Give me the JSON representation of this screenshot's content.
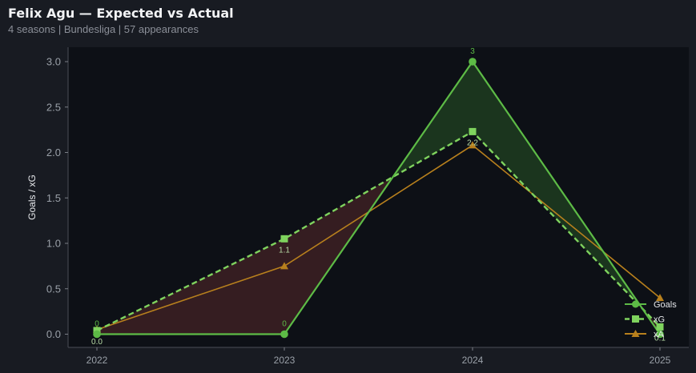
{
  "header": {
    "title": "Felix Agu — Expected vs Actual",
    "subtitle": "4 seasons | Bundesliga | 57 appearances"
  },
  "chart_data": {
    "type": "line",
    "title": "Felix Agu — Expected vs Actual",
    "subtitle": "4 seasons | Bundesliga | 57 appearances",
    "xlabel": "",
    "ylabel": "Goals / xG",
    "categories": [
      "2022",
      "2023",
      "2024",
      "2025"
    ],
    "ylim": [
      -0.08,
      3.17
    ],
    "yticks": [
      "0.0",
      "0.5",
      "1.0",
      "1.5",
      "2.0",
      "2.5",
      "3.0"
    ],
    "series": [
      {
        "name": "Goals",
        "values": [
          0,
          0,
          3,
          0
        ],
        "color": "#5dbb46",
        "style": "solid",
        "marker": "circle",
        "labels": [
          "0",
          "0",
          "3",
          ""
        ]
      },
      {
        "name": "xG",
        "values": [
          0.04,
          1.05,
          2.23,
          0.08
        ],
        "color": "#7fd35e",
        "style": "dashed",
        "marker": "square",
        "labels": [
          "0.0",
          "1.1",
          "2.2",
          "0.1"
        ]
      },
      {
        "name": "xA",
        "values": [
          0.05,
          0.75,
          2.08,
          0.4
        ],
        "color": "#b8801d",
        "style": "solid",
        "marker": "triangle",
        "labels": []
      }
    ],
    "fill_between": {
      "over": "#1d3a1f",
      "under": "#3a1f22"
    },
    "grid": false,
    "legend": "bottom-right"
  }
}
